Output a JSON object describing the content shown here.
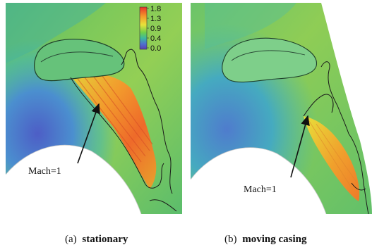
{
  "colorbar": {
    "ticks": [
      "1.8",
      "1.3",
      "0.9",
      "0.4",
      "0.0"
    ],
    "colors": [
      "#e8332a",
      "#f39a2a",
      "#e7e23a",
      "#6fcf4a",
      "#3cb8a0",
      "#4f6fd0",
      "#5a3fb0"
    ]
  },
  "panel_a": {
    "label_id": "(a)",
    "label_text": "stationary",
    "annotation": "Mach=1"
  },
  "panel_b": {
    "label_id": "(b)",
    "label_text": "moving casing",
    "annotation": "Mach=1"
  }
}
